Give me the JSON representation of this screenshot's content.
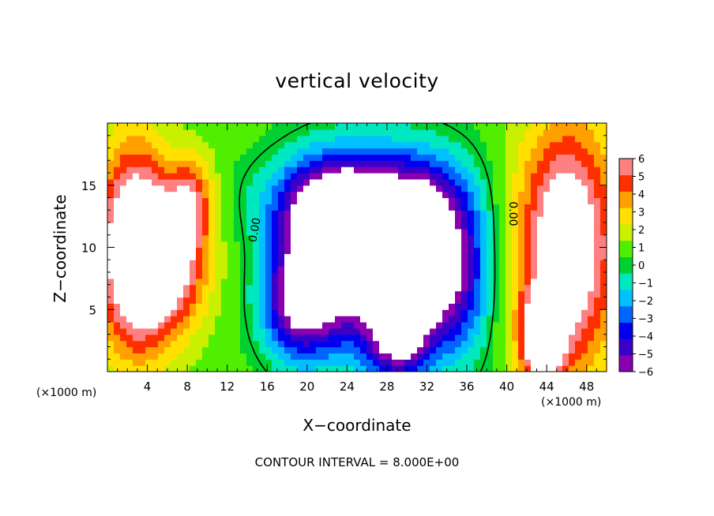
{
  "chart_data": {
    "type": "heatmap",
    "title": "vertical velocity",
    "xlabel": "X−coordinate",
    "ylabel": "Z−coordinate",
    "x_unit": "(×1000 m)",
    "y_unit": "(×1000 m)",
    "footnote": "CONTOUR INTERVAL = 8.000E+00",
    "xlim": [
      0,
      50
    ],
    "ylim": [
      0,
      20
    ],
    "x_ticks": [
      4,
      8,
      12,
      16,
      20,
      24,
      28,
      32,
      36,
      40,
      44,
      48
    ],
    "y_ticks": [
      5,
      10,
      15
    ],
    "colorbar": {
      "range": [
        -6,
        6
      ],
      "ticks": [
        6,
        5,
        4,
        3,
        2,
        1,
        0,
        -1,
        -2,
        -3,
        -4,
        -5,
        -6
      ],
      "tick_labels": [
        "6",
        "5",
        "4",
        "3",
        "2",
        "1",
        "0",
        "−1",
        "−2",
        "−3",
        "−4",
        "−5",
        "−6"
      ],
      "colors": [
        "#8a00b0",
        "#3a00c8",
        "#0000ee",
        "#0064ff",
        "#00c0ff",
        "#00e8c0",
        "#00d030",
        "#50ee00",
        "#c8f000",
        "#ffe000",
        "#ffa000",
        "#ff3000",
        "#ff8080"
      ],
      "over_color": "#ffffff",
      "under_color": "#ffffff"
    },
    "contour_labels": [
      {
        "text": "0.00",
        "x": 14.8,
        "y": 11.4,
        "rotation": -80
      },
      {
        "text": "0.00",
        "x": 40.6,
        "y": 12.7,
        "rotation": 90
      }
    ],
    "features": [
      {
        "sign": "positive",
        "x": 2.5,
        "z": 10,
        "peak": 7,
        "sx": 2.5,
        "sz": 6
      },
      {
        "sign": "positive",
        "x": 6,
        "z": 9,
        "peak": 6.5,
        "sx": 2.8,
        "sz": 4
      },
      {
        "sign": "positive",
        "x": 8.5,
        "z": 14,
        "peak": 3.5,
        "sx": 1.5,
        "sz": 2.5
      },
      {
        "sign": "positive",
        "x": 46,
        "z": 10,
        "peak": 7.5,
        "sx": 3.5,
        "sz": 7
      },
      {
        "sign": "positive",
        "x": 43.5,
        "z": 2.5,
        "peak": 6,
        "sx": 1.5,
        "sz": 2.5
      },
      {
        "sign": "negative",
        "x": 22,
        "z": 10,
        "peak": -7,
        "sx": 3.5,
        "sz": 4
      },
      {
        "sign": "negative",
        "x": 27,
        "z": 9,
        "peak": -6,
        "sx": 5,
        "sz": 5.5
      },
      {
        "sign": "negative",
        "x": 32,
        "z": 9,
        "peak": -7,
        "sx": 2.5,
        "sz": 4.5
      },
      {
        "sign": "negative",
        "x": 25,
        "z": 14,
        "peak": -4.5,
        "sx": 6,
        "sz": 2.5
      },
      {
        "sign": "negative",
        "x": 19,
        "z": 5,
        "peak": -5,
        "sx": 2.5,
        "sz": 3
      },
      {
        "sign": "negative",
        "x": 29,
        "z": 3,
        "peak": -5.5,
        "sx": 2,
        "sz": 2.5
      },
      {
        "sign": "negative",
        "x": 36,
        "z": 8,
        "peak": -3,
        "sx": 2,
        "sz": 5
      }
    ]
  }
}
